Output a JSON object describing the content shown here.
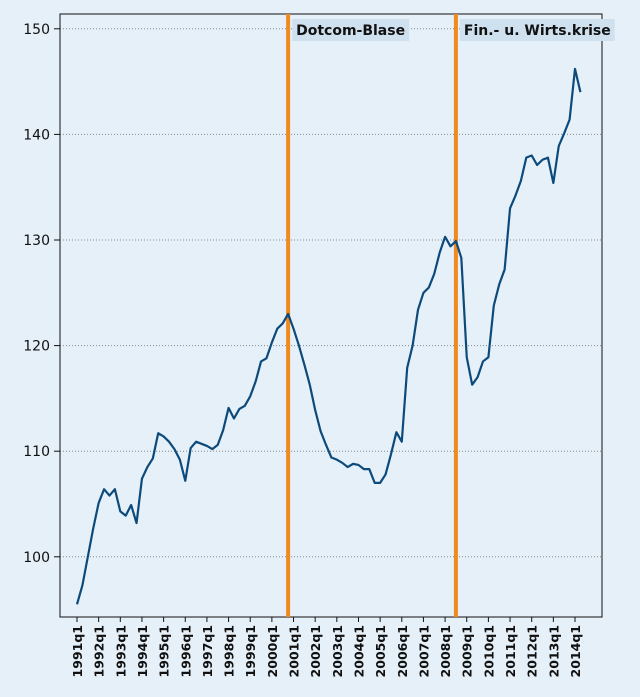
{
  "chart_data": {
    "type": "line",
    "categories": [
      "1991q1",
      null,
      null,
      null,
      "1992q1",
      null,
      null,
      null,
      "1993q1",
      null,
      null,
      null,
      "1994q1",
      null,
      null,
      null,
      "1995q1",
      null,
      null,
      null,
      "1996q1",
      null,
      null,
      null,
      "1997q1",
      null,
      null,
      null,
      "1998q1",
      null,
      null,
      null,
      "1999q1",
      null,
      null,
      null,
      "2000q1",
      null,
      null,
      null,
      "2001q1",
      null,
      null,
      null,
      "2002q1",
      null,
      null,
      null,
      "2003q1",
      null,
      null,
      null,
      "2004q1",
      null,
      null,
      null,
      "2005q1",
      null,
      null,
      null,
      "2006q1",
      null,
      null,
      null,
      "2007q1",
      null,
      null,
      null,
      "2008q1",
      null,
      null,
      null,
      "2009q1",
      null,
      null,
      null,
      "2010q1",
      null,
      null,
      null,
      "2011q1",
      null,
      null,
      null,
      "2012q1",
      null,
      null,
      null,
      "2013q1",
      null,
      null,
      null,
      "2014q1",
      null
    ],
    "values": [
      95.5,
      97.3,
      100,
      102.7,
      105.1,
      106.4,
      105.8,
      106.4,
      104.3,
      103.9,
      104.9,
      103.2,
      107.4,
      108.5,
      109.3,
      111.7,
      111.4,
      110.9,
      110.2,
      109.2,
      107.2,
      110.3,
      110.9,
      110.7,
      110.5,
      110.2,
      110.6,
      112.0,
      114.1,
      113.1,
      114.0,
      114.3,
      115.2,
      116.6,
      118.5,
      118.8,
      120.3,
      121.6,
      122.1,
      123.0,
      121.6,
      120.0,
      118.2,
      116.3,
      113.9,
      111.9,
      110.6,
      109.4,
      109.2,
      108.9,
      108.5,
      108.8,
      108.7,
      108.3,
      108.3,
      107.0,
      107.0,
      107.8,
      109.7,
      111.8,
      110.9,
      117.9,
      120.0,
      123.4,
      125.0,
      125.5,
      126.8,
      128.8,
      130.3,
      129.4,
      129.9,
      128.3,
      118.9,
      116.3,
      117.0,
      118.5,
      118.9,
      123.8,
      125.8,
      127.2,
      133.0,
      134.2,
      135.6,
      137.8,
      138.0,
      137.1,
      137.6,
      137.8,
      135.4,
      138.9,
      140.1,
      141.4,
      146.2,
      144.0
    ],
    "color": "#0d4a7c",
    "ylim": [
      94.3,
      151.4
    ],
    "yticks": [
      100,
      110,
      120,
      130,
      140,
      150
    ],
    "grid": true,
    "annotations": [
      {
        "text": "Dotcom-Blase",
        "index": 39,
        "color": "#f0891e"
      },
      {
        "text": "Fin.- u. Wirts.krise",
        "index": 70,
        "color": "#f0891e"
      }
    ]
  }
}
